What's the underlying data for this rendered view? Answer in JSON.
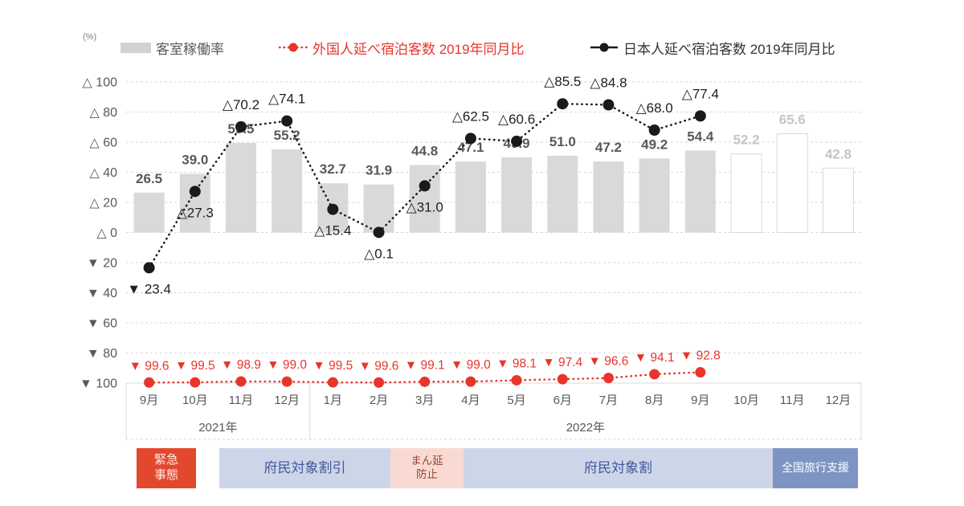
{
  "legend": {
    "unit_label": "(%)",
    "bar_item": "客室稼働率",
    "foreign_item": "外国人延べ宿泊客数 2019年同月比",
    "japanese_item": "日本人延べ宿泊客数 2019年同月比"
  },
  "colors": {
    "bar_fill": "#d9d9d9",
    "forecast_bar_stroke": "#d9d9d9",
    "red_series": "#e8352b",
    "black_series": "#1a1a1a",
    "gridline": "#d9d9d9",
    "axis_text": "#595959"
  },
  "chart_data": {
    "type": "combo-bar-line",
    "title": "",
    "ylabel": "(%)",
    "ylim": [
      -100,
      100
    ],
    "grid": true,
    "y_ticks": [
      {
        "value": 100,
        "label": "△ 100"
      },
      {
        "value": 80,
        "label": "△ 80"
      },
      {
        "value": 60,
        "label": "△ 60"
      },
      {
        "value": 40,
        "label": "△ 40"
      },
      {
        "value": 20,
        "label": "△ 20"
      },
      {
        "value": 0,
        "label": "△ 0"
      },
      {
        "value": -20,
        "label": "▼ 20"
      },
      {
        "value": -40,
        "label": "▼ 40"
      },
      {
        "value": -60,
        "label": "▼ 60"
      },
      {
        "value": -80,
        "label": "▼ 80"
      },
      {
        "value": -100,
        "label": "▼ 100"
      }
    ],
    "categories": [
      "9月",
      "10月",
      "11月",
      "12月",
      "1月",
      "2月",
      "3月",
      "4月",
      "5月",
      "6月",
      "7月",
      "8月",
      "9月",
      "10月",
      "11月",
      "12月"
    ],
    "year_groups": [
      {
        "label": "2021年",
        "from": 0,
        "to": 3
      },
      {
        "label": "2022年",
        "from": 4,
        "to": 15
      }
    ],
    "series": [
      {
        "name": "客室稼働率",
        "type": "bar",
        "values": [
          26.5,
          39.0,
          59.5,
          55.2,
          32.7,
          31.9,
          44.8,
          47.1,
          49.9,
          51.0,
          47.2,
          49.2,
          54.4,
          52.2,
          65.6,
          42.8
        ],
        "forecast_from_index": 13
      },
      {
        "name": "外国人延べ宿泊客数 2019年同月比",
        "type": "line",
        "style": "dotted-red",
        "values": [
          -99.6,
          -99.5,
          -98.9,
          -99.0,
          -99.5,
          -99.6,
          -99.1,
          -99.0,
          -98.1,
          -97.4,
          -96.6,
          -94.1,
          -92.8
        ],
        "point_labels": [
          "▼ 99.6",
          "▼ 99.5",
          "▼ 98.9",
          "▼ 99.0",
          "▼ 99.5",
          "▼ 99.6",
          "▼ 99.1",
          "▼ 99.0",
          "▼ 98.1",
          "▼ 97.4",
          "▼ 96.6",
          "▼ 94.1",
          "▼ 92.8"
        ]
      },
      {
        "name": "日本人延べ宿泊客数 2019年同月比",
        "type": "line",
        "style": "dotted-black",
        "values": [
          -23.4,
          27.3,
          70.2,
          74.1,
          15.4,
          0.1,
          31.0,
          62.5,
          60.6,
          85.5,
          84.8,
          68.0,
          77.4
        ],
        "point_labels": [
          "▼ 23.4",
          "△27.3",
          "△70.2",
          "△74.1",
          "△15.4",
          "△0.1",
          "△31.0",
          "△62.5",
          "△60.6",
          "△85.5",
          "△84.8",
          "△68.0",
          "△77.4"
        ],
        "label_side": [
          "below",
          "below",
          "above",
          "above",
          "below",
          "below",
          "below",
          "above",
          "above",
          "above",
          "above",
          "above",
          "above"
        ]
      }
    ]
  },
  "timeline_bands": [
    {
      "label": "緊急\n事態",
      "bg": "#e2482e",
      "fg": "#fdece6"
    },
    {
      "label": "府民対象割引",
      "bg": "#cdd5e9",
      "fg": "#44589b"
    },
    {
      "label": "まん延\n防止",
      "bg": "#f9dad2",
      "fg": "#9c423a"
    },
    {
      "label": "府民対象割",
      "bg": "#cdd5e9",
      "fg": "#44589b"
    },
    {
      "label": "全国旅行支援",
      "bg": "#7e95c4",
      "fg": "#ffffff"
    }
  ]
}
